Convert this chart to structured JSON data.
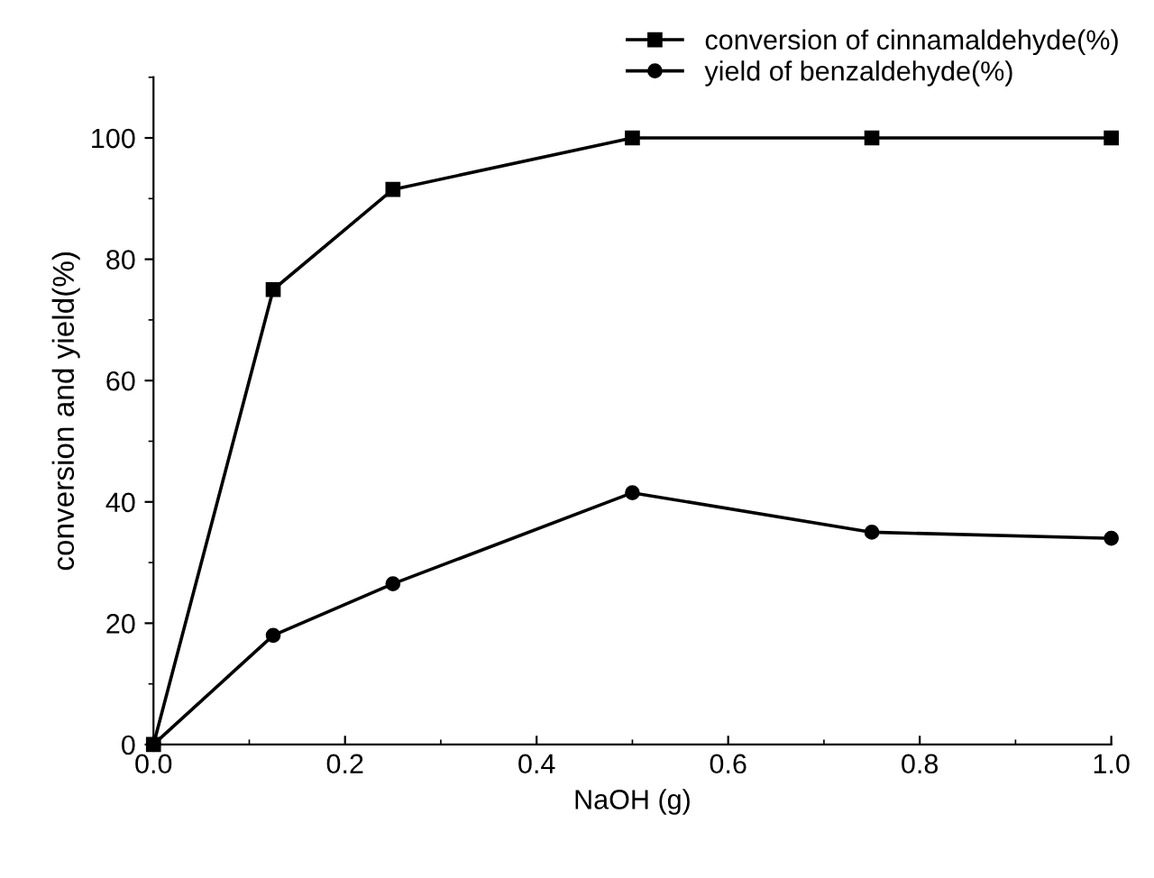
{
  "chart_data": {
    "type": "line",
    "xlabel": "NaOH (g)",
    "ylabel": "conversion and yield(%)",
    "x": [
      0,
      0.125,
      0.25,
      0.5,
      0.75,
      1.0
    ],
    "series": [
      {
        "name": "conversion of cinnamaldehyde(%)",
        "color": "#000000",
        "marker": "square",
        "values": [
          0,
          75,
          91.5,
          100,
          100,
          100
        ]
      },
      {
        "name": "yield of benzaldehyde(%)",
        "color": "#000000",
        "marker": "circle",
        "values": [
          0,
          18,
          26.5,
          41.5,
          35,
          34
        ]
      }
    ],
    "xlim": [
      0,
      1.0
    ],
    "ylim": [
      0,
      110
    ],
    "xticks": [
      {
        "value": 0,
        "label": "0.0"
      },
      0.2,
      0.4,
      0.6,
      0.8,
      {
        "value": 1.0,
        "label": "1.0"
      }
    ],
    "yticks": [
      0,
      20,
      40,
      60,
      80,
      100
    ],
    "grid": false,
    "legend": "top right",
    "line_style": "solid"
  }
}
